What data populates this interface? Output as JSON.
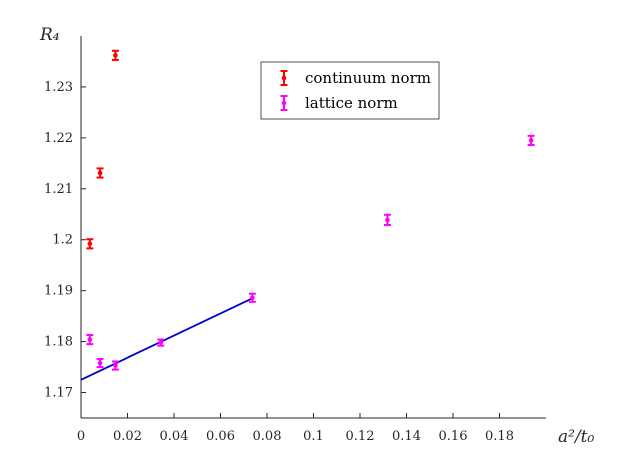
{
  "chart_data": {
    "type": "scatter",
    "xlabel": "a²/t₀",
    "ylabel": "R₄",
    "xlim": [
      0,
      0.2
    ],
    "ylim": [
      1.165,
      1.24
    ],
    "xticks": [
      0,
      0.02,
      0.04,
      0.06,
      0.08,
      0.1,
      0.12,
      0.14,
      0.16,
      0.18
    ],
    "xtick_labels": [
      "0",
      "0.02",
      "0.04",
      "0.06",
      "0.08",
      "0.1",
      "0.12",
      "0.14",
      "0.16",
      "0.18"
    ],
    "yticks": [
      1.17,
      1.18,
      1.19,
      1.2,
      1.21,
      1.22,
      1.23
    ],
    "ytick_labels": [
      "1.17",
      "1.18",
      "1.19",
      "1.2",
      "1.21",
      "1.22",
      "1.23"
    ],
    "grid": false,
    "legend_position": "top-center",
    "series": [
      {
        "name": "continuum norm",
        "color": "#ff0000",
        "points": [
          {
            "x": 0.0038,
            "y": 1.1992,
            "err": 0.0009
          },
          {
            "x": 0.0082,
            "y": 1.2131,
            "err": 0.0009
          },
          {
            "x": 0.0148,
            "y": 1.2362,
            "err": 0.0009
          }
        ]
      },
      {
        "name": "lattice norm",
        "color": "#ff00ff",
        "points": [
          {
            "x": 0.0038,
            "y": 1.1804,
            "err": 0.0009
          },
          {
            "x": 0.0082,
            "y": 1.1758,
            "err": 0.0008
          },
          {
            "x": 0.0148,
            "y": 1.1753,
            "err": 0.0008
          },
          {
            "x": 0.0343,
            "y": 1.1798,
            "err": 0.0006
          },
          {
            "x": 0.0737,
            "y": 1.1886,
            "err": 0.0008
          },
          {
            "x": 0.1318,
            "y": 1.2039,
            "err": 0.001
          },
          {
            "x": 0.1936,
            "y": 1.2195,
            "err": 0.0009
          }
        ]
      }
    ],
    "fit_line": {
      "color": "#0000cc",
      "x": [
        0,
        0.0737
      ],
      "y": [
        1.1725,
        1.1885
      ]
    }
  }
}
